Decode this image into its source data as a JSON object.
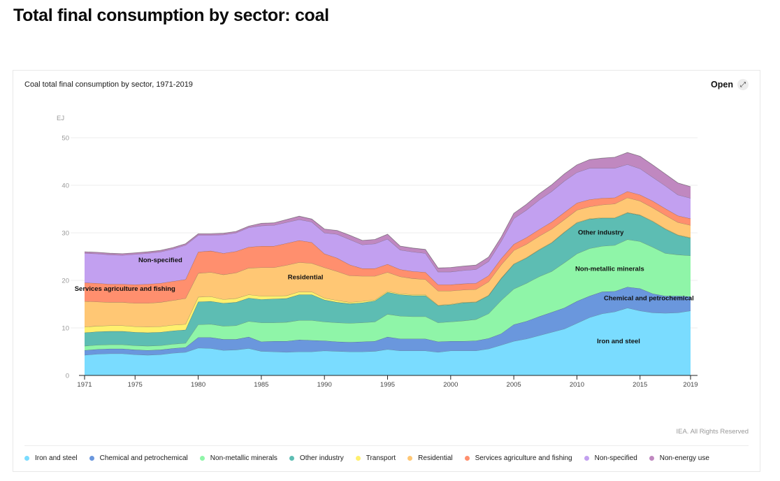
{
  "page": {
    "title": "Total final consumption by sector: coal"
  },
  "card": {
    "title": "Coal total final consumption by sector, 1971-2019",
    "open_label": "Open",
    "open_icon": "expand-arrows-icon",
    "credit": "IEA. All Rights Reserved"
  },
  "chart_data": {
    "type": "area",
    "stacked": true,
    "title": "Coal total final consumption by sector, 1971-2019",
    "xlabel": "",
    "ylabel": "EJ",
    "ylim": [
      0,
      50
    ],
    "yticks": [
      0,
      10,
      20,
      30,
      40,
      50
    ],
    "xlim": [
      1971,
      2019
    ],
    "xticks": [
      1971,
      1975,
      1980,
      1985,
      1990,
      1995,
      2000,
      2005,
      2010,
      2015,
      2019
    ],
    "grid": true,
    "legend_position": "bottom",
    "x": [
      1971,
      1972,
      1973,
      1974,
      1975,
      1976,
      1977,
      1978,
      1979,
      1980,
      1981,
      1982,
      1983,
      1984,
      1985,
      1986,
      1987,
      1988,
      1989,
      1990,
      1991,
      1992,
      1993,
      1994,
      1995,
      1996,
      1997,
      1998,
      1999,
      2000,
      2001,
      2002,
      2003,
      2004,
      2005,
      2006,
      2007,
      2008,
      2009,
      2010,
      2011,
      2012,
      2013,
      2014,
      2015,
      2016,
      2017,
      2018,
      2019
    ],
    "series": [
      {
        "name": "Iron and steel",
        "color": "#7adcff",
        "values": [
          4.3,
          4.5,
          4.6,
          4.6,
          4.4,
          4.3,
          4.4,
          4.7,
          4.9,
          5.8,
          5.7,
          5.3,
          5.4,
          5.7,
          5.1,
          5.0,
          4.9,
          5.0,
          5.0,
          5.2,
          5.1,
          5.0,
          5.0,
          5.1,
          5.5,
          5.2,
          5.2,
          5.2,
          4.9,
          5.2,
          5.2,
          5.2,
          5.6,
          6.4,
          7.2,
          7.7,
          8.4,
          9.1,
          9.8,
          11.0,
          12.2,
          13.0,
          13.4,
          14.2,
          13.6,
          13.2,
          13.1,
          13.2,
          13.6
        ]
      },
      {
        "name": "Chemical and petrochemical",
        "color": "#6a97dd",
        "values": [
          1.0,
          1.0,
          1.0,
          1.0,
          1.0,
          1.0,
          1.0,
          1.0,
          1.0,
          2.2,
          2.3,
          2.3,
          2.2,
          2.4,
          2.0,
          2.2,
          2.3,
          2.5,
          2.4,
          2.1,
          2.0,
          2.0,
          2.1,
          2.1,
          2.6,
          2.5,
          2.5,
          2.5,
          2.2,
          2.0,
          2.0,
          2.1,
          2.2,
          2.4,
          3.5,
          3.7,
          4.0,
          4.2,
          4.4,
          4.6,
          4.5,
          4.6,
          4.3,
          4.4,
          4.7,
          4.0,
          3.6,
          3.5,
          3.0
        ]
      },
      {
        "name": "Non-metallic minerals",
        "color": "#8ff5a8",
        "values": [
          0.9,
          0.9,
          0.9,
          0.9,
          0.9,
          0.9,
          0.9,
          0.9,
          0.9,
          2.7,
          2.8,
          2.8,
          2.9,
          3.3,
          4.0,
          3.9,
          4.0,
          4.1,
          4.2,
          4.0,
          4.0,
          4.0,
          4.0,
          4.1,
          4.8,
          4.8,
          4.7,
          4.7,
          4.0,
          4.1,
          4.3,
          4.5,
          5.2,
          7.0,
          7.5,
          8.0,
          8.4,
          8.6,
          9.5,
          10.0,
          10.0,
          9.6,
          9.7,
          10.0,
          9.9,
          9.8,
          9.0,
          8.7,
          8.6
        ]
      },
      {
        "name": "Other industry",
        "color": "#5dbdb3",
        "values": [
          2.8,
          2.8,
          2.8,
          2.8,
          2.8,
          2.8,
          2.8,
          2.8,
          2.8,
          4.8,
          4.8,
          4.8,
          4.9,
          4.9,
          4.9,
          5.0,
          5.0,
          5.4,
          5.4,
          4.6,
          4.3,
          4.1,
          4.2,
          4.4,
          4.6,
          4.5,
          4.4,
          4.4,
          3.6,
          3.6,
          3.8,
          3.6,
          3.8,
          4.6,
          5.2,
          5.3,
          5.6,
          6.0,
          6.4,
          6.5,
          6.2,
          5.9,
          5.7,
          5.6,
          5.5,
          5.4,
          5.1,
          4.1,
          3.7
        ]
      },
      {
        "name": "Transport",
        "color": "#fff06e",
        "values": [
          1.2,
          1.2,
          1.2,
          1.2,
          1.2,
          1.2,
          1.2,
          1.2,
          1.2,
          1.0,
          1.0,
          0.8,
          0.8,
          0.7,
          0.7,
          0.6,
          0.6,
          0.6,
          0.6,
          0.4,
          0.4,
          0.3,
          0.3,
          0.2,
          0.2,
          0.2,
          0.2,
          0.2,
          0.1,
          0.1,
          0.1,
          0.1,
          0.1,
          0.1,
          0.1,
          0.1,
          0.1,
          0.1,
          0.1,
          0.1,
          0.1,
          0.1,
          0.1,
          0.1,
          0.1,
          0.1,
          0.1,
          0.1,
          0.1
        ]
      },
      {
        "name": "Residential",
        "color": "#ffc774",
        "values": [
          5.4,
          5.1,
          4.9,
          4.9,
          4.9,
          5.0,
          5.1,
          5.2,
          5.4,
          5.0,
          5.1,
          5.2,
          5.4,
          5.6,
          6.0,
          6.0,
          6.4,
          6.2,
          6.0,
          6.4,
          6.1,
          5.6,
          5.3,
          5.0,
          4.0,
          3.6,
          3.4,
          3.2,
          3.0,
          2.8,
          2.6,
          2.6,
          2.8,
          2.8,
          2.8,
          2.8,
          2.8,
          2.8,
          2.6,
          2.6,
          2.5,
          2.7,
          2.9,
          3.1,
          2.9,
          2.8,
          2.8,
          2.6,
          2.6
        ]
      },
      {
        "name": "Services agriculture and fishing",
        "color": "#ff8f6e",
        "values": [
          3.9,
          3.9,
          3.8,
          3.8,
          3.9,
          4.0,
          4.0,
          4.0,
          4.0,
          4.5,
          4.5,
          4.5,
          4.5,
          4.4,
          4.5,
          4.5,
          4.6,
          4.6,
          4.4,
          2.9,
          2.8,
          2.3,
          1.6,
          1.6,
          1.7,
          1.5,
          1.5,
          1.5,
          1.3,
          1.3,
          1.3,
          1.3,
          1.3,
          1.3,
          1.3,
          1.4,
          1.4,
          1.5,
          1.5,
          1.5,
          1.5,
          1.4,
          1.3,
          1.3,
          1.3,
          1.4,
          1.4,
          1.4,
          1.4
        ]
      },
      {
        "name": "Non-specified",
        "color": "#c2a0f0",
        "values": [
          6.2,
          6.2,
          6.2,
          6.1,
          6.4,
          6.5,
          6.6,
          6.8,
          7.2,
          3.5,
          3.3,
          3.9,
          3.9,
          4.1,
          4.3,
          4.4,
          4.4,
          4.4,
          4.3,
          4.4,
          5.0,
          5.3,
          5.0,
          5.2,
          5.3,
          4.1,
          4.1,
          4.0,
          2.7,
          2.7,
          2.8,
          2.9,
          3.0,
          3.6,
          5.4,
          5.8,
          6.2,
          6.4,
          6.6,
          6.4,
          6.6,
          6.3,
          6.2,
          5.7,
          5.5,
          5.0,
          4.8,
          4.4,
          4.3
        ]
      },
      {
        "name": "Non-energy use",
        "color": "#c088c0",
        "values": [
          0.3,
          0.3,
          0.3,
          0.3,
          0.3,
          0.3,
          0.3,
          0.3,
          0.3,
          0.3,
          0.3,
          0.3,
          0.3,
          0.3,
          0.5,
          0.5,
          0.6,
          0.7,
          0.6,
          0.8,
          0.8,
          0.9,
          0.9,
          0.9,
          1.0,
          0.8,
          0.8,
          0.8,
          0.8,
          0.9,
          0.9,
          0.9,
          0.9,
          0.9,
          1.1,
          1.2,
          1.3,
          1.4,
          1.5,
          1.6,
          1.8,
          2.1,
          2.3,
          2.5,
          2.6,
          2.6,
          2.5,
          2.5,
          2.4
        ]
      }
    ],
    "annotations": [
      {
        "text": "Non-specified",
        "series": "Non-specified",
        "x": 1977,
        "y": 23.8
      },
      {
        "text": "Services agriculture and fishing",
        "series": "Services agriculture and fishing",
        "x": 1974.2,
        "y": 17.8
      },
      {
        "text": "Residential",
        "series": "Residential",
        "x": 1988.5,
        "y": 20.2
      },
      {
        "text": "Other industry",
        "series": "Other industry",
        "x": 2011.9,
        "y": 29.6
      },
      {
        "text": "Non-metallic minerals",
        "series": "Non-metallic minerals",
        "x": 2012.6,
        "y": 22.0
      },
      {
        "text": "Chemical and petrochemical",
        "series": "Chemical and petrochemical",
        "x": 2015.7,
        "y": 15.8
      },
      {
        "text": "Iron and steel",
        "series": "Iron and steel",
        "x": 2013.3,
        "y": 6.8
      }
    ]
  }
}
